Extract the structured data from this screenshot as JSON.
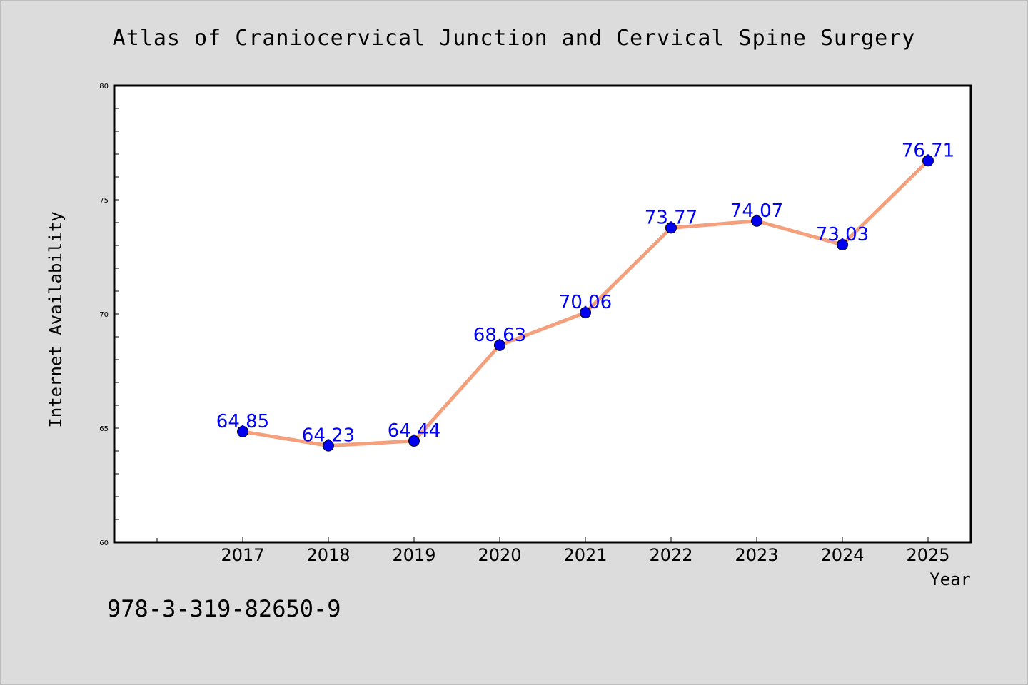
{
  "chart_data": {
    "type": "line",
    "title": "Atlas of Craniocervical Junction and Cervical Spine Surgery",
    "xlabel": "Year",
    "ylabel": "Internet Availability",
    "x": [
      "2017",
      "2018",
      "2019",
      "2020",
      "2021",
      "2022",
      "2023",
      "2024",
      "2025"
    ],
    "series": [
      {
        "values": [
          64.85,
          64.23,
          64.44,
          68.63,
          70.06,
          73.77,
          74.07,
          73.03,
          76.71
        ],
        "labels": [
          "64.85",
          "64.23",
          "64.44",
          "68.63",
          "70.06",
          "73.77",
          "74.07",
          "73.03",
          "76.71"
        ]
      }
    ],
    "ylim": [
      60,
      80
    ],
    "yticks": [
      "60",
      "65",
      "70",
      "75",
      "80"
    ],
    "grid": false,
    "colors": {
      "line": "#f4a07c",
      "marker": "#0000ee",
      "data_label": "#0000ff",
      "background": "#dcdcdc",
      "plot_bg": "#ffffff"
    }
  },
  "footer": {
    "isbn": "978-3-319-82650-9"
  }
}
